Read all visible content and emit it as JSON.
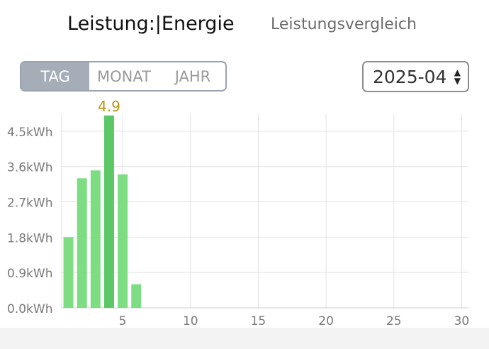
{
  "header": {
    "tab_active": "Leistung:|Energie",
    "tab_other": "Leistungsvergleich"
  },
  "period": {
    "options": [
      "TAG",
      "MONAT",
      "JAHR"
    ],
    "selected": "TAG"
  },
  "date_select": {
    "value": "2025-04",
    "caret_up": "▲",
    "caret_down": "▼"
  },
  "colors": {
    "bar": "#7ddd82",
    "bar_highlight": "#5bc865",
    "peak_label": "#b8950f",
    "grid": "#e2e2e2",
    "axis_text": "#7a7a7a"
  },
  "chart_data": {
    "type": "bar",
    "x": [
      1,
      2,
      3,
      4,
      5,
      6
    ],
    "values": [
      1.8,
      3.3,
      3.5,
      4.9,
      3.4,
      0.6
    ],
    "highlight_index": 3,
    "peak_label": "4.9",
    "ylim": [
      0,
      4.95
    ],
    "y_ticks": [
      "0.0kWh",
      "0.9kWh",
      "1.8kWh",
      "2.7kWh",
      "3.6kWh",
      "4.5kWh"
    ],
    "y_tick_values": [
      0,
      0.9,
      1.8,
      2.7,
      3.6,
      4.5
    ],
    "xlim": [
      0.5,
      30.5
    ],
    "x_ticks": [
      "5",
      "10",
      "15",
      "20",
      "25",
      "30"
    ],
    "x_tick_values": [
      5,
      10,
      15,
      20,
      25,
      30
    ],
    "grid": true
  }
}
